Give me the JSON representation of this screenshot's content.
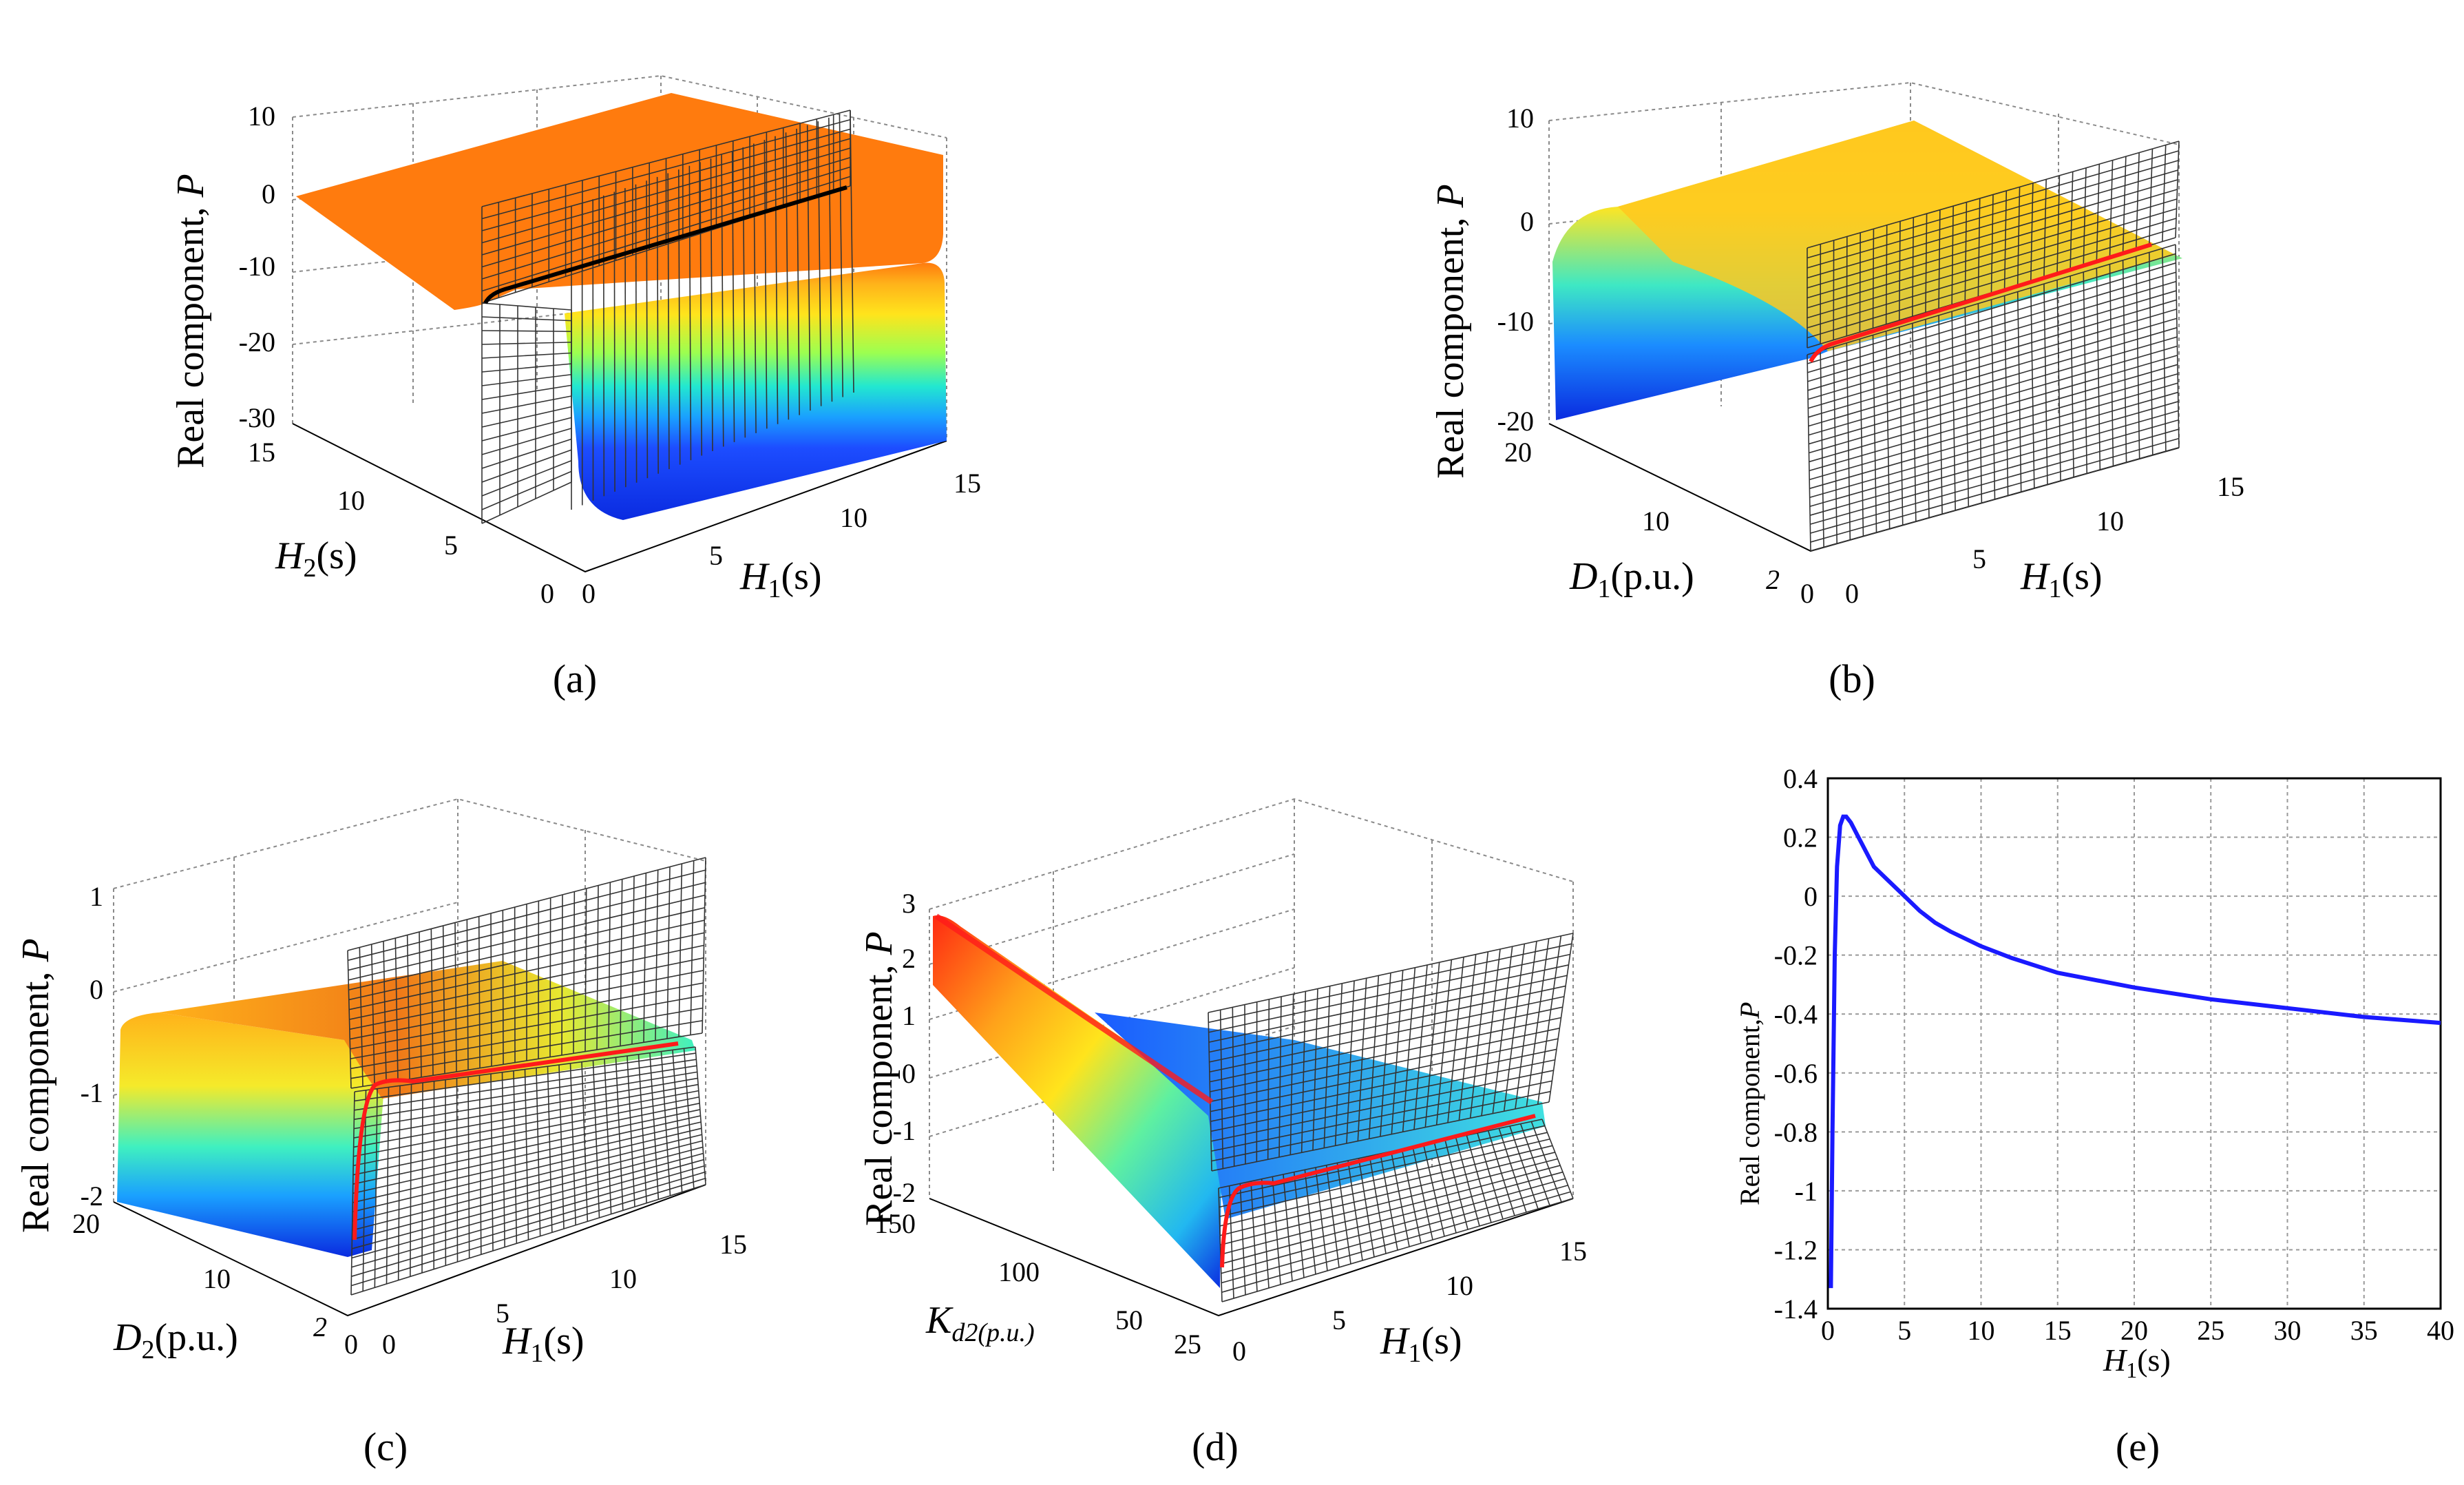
{
  "chart_data": [
    {
      "id": "a",
      "type": "surface",
      "caption": "(a)",
      "zlabel": {
        "prefix": "Real component, ",
        "var": "P"
      },
      "ylabel": {
        "var": "H",
        "sub": "2",
        "unit": "(s)"
      },
      "xlabel": {
        "var": "H",
        "sub": "1",
        "unit": "(s)"
      },
      "z_ticks": [
        "10",
        "0",
        "-10",
        "-20",
        "-30"
      ],
      "y_ticks": [
        "15",
        "10",
        "5",
        "0"
      ],
      "x_ticks": [
        "0",
        "5",
        "10",
        "15"
      ],
      "zlim": [
        -30,
        10
      ],
      "xlim": [
        0,
        15
      ],
      "ylim": [
        0,
        15
      ],
      "curve_color": "#000000",
      "surface_colors": [
        "#ff7b0e",
        "#ffe41c",
        "#22e8d0",
        "#1d4dff",
        "#0a2be0"
      ]
    },
    {
      "id": "b",
      "type": "surface",
      "caption": "(b)",
      "zlabel": {
        "prefix": "Real component, ",
        "var": "P"
      },
      "ylabel": {
        "var": "D",
        "sub": "1",
        "unit": "(p.u.)"
      },
      "xlabel": {
        "var": "H",
        "sub": "1",
        "unit": "(s)"
      },
      "z_ticks": [
        "10",
        "0",
        "-10",
        "-20"
      ],
      "y_ticks": [
        "20",
        "10",
        "2",
        "0"
      ],
      "x_ticks": [
        "0",
        "5",
        "10",
        "15"
      ],
      "zlim": [
        -20,
        10
      ],
      "xlim": [
        0,
        15
      ],
      "ylim": [
        2,
        20
      ],
      "curve_color": "#ff1a1a",
      "surface_colors": [
        "#ffc81e",
        "#f6e52a",
        "#3ee8c4",
        "#1b8cff",
        "#0a2be0"
      ]
    },
    {
      "id": "c",
      "type": "surface",
      "caption": "(c)",
      "zlabel": {
        "prefix": "Real component, ",
        "var": "P"
      },
      "ylabel": {
        "var": "D",
        "sub": "2",
        "unit": "(p.u.)"
      },
      "xlabel": {
        "var": "H",
        "sub": "1",
        "unit": "(s)"
      },
      "z_ticks": [
        "1",
        "0",
        "-1",
        "-2"
      ],
      "y_ticks": [
        "20",
        "10",
        "2",
        "0"
      ],
      "x_ticks": [
        "0",
        "5",
        "10",
        "15"
      ],
      "zlim": [
        -2,
        1
      ],
      "xlim": [
        0,
        15
      ],
      "ylim": [
        2,
        20
      ],
      "curve_color": "#ff1a1a",
      "surface_colors": [
        "#ffb21a",
        "#f5ea2a",
        "#3ff0c0",
        "#1aa0ff",
        "#0a2be0"
      ]
    },
    {
      "id": "d",
      "type": "surface",
      "caption": "(d)",
      "zlabel": {
        "prefix": "Real component, ",
        "var": "P"
      },
      "ylabel": {
        "var": "K",
        "sub": "d2(p.u.)",
        "unit": ""
      },
      "xlabel": {
        "var": "H",
        "sub": "1",
        "unit": "(s)"
      },
      "z_ticks": [
        "3",
        "2",
        "1",
        "0",
        "-1",
        "-2"
      ],
      "y_ticks": [
        "150",
        "100",
        "50",
        "25"
      ],
      "x_ticks": [
        "0",
        "5",
        "10",
        "15"
      ],
      "zlim": [
        -2,
        3
      ],
      "xlim": [
        0,
        15
      ],
      "ylim": [
        25,
        150
      ],
      "curve_color": "#ff1a1a",
      "surface_colors": [
        "#ff2a12",
        "#ffd21c",
        "#5ff0a0",
        "#22b8f0",
        "#0a2be0"
      ]
    },
    {
      "id": "e",
      "type": "line",
      "caption": "(e)",
      "ylabel": {
        "prefix": "Real component,",
        "var": "P"
      },
      "xlabel": {
        "var": "H",
        "sub": "1",
        "unit": "(s)"
      },
      "xlim": [
        0,
        40
      ],
      "ylim": [
        -1.4,
        0.4
      ],
      "x_ticks": [
        "0",
        "5",
        "10",
        "15",
        "20",
        "25",
        "30",
        "35",
        "40"
      ],
      "y_ticks": [
        "0.4",
        "0.2",
        "0",
        "-0.2",
        "-0.4",
        "-0.6",
        "-0.8",
        "-1",
        "-1.2",
        "-1.4"
      ],
      "grid": true,
      "series": [
        {
          "color": "#1a1aff",
          "x": [
            0.2,
            0.3,
            0.45,
            0.6,
            0.8,
            1.0,
            1.2,
            1.5,
            2,
            2.5,
            3,
            4,
            5,
            6,
            7,
            8,
            10,
            12,
            15,
            20,
            25,
            30,
            35,
            40
          ],
          "y": [
            -1.33,
            -0.8,
            -0.2,
            0.1,
            0.24,
            0.27,
            0.27,
            0.25,
            0.2,
            0.15,
            0.1,
            0.05,
            0.0,
            -0.05,
            -0.09,
            -0.12,
            -0.17,
            -0.21,
            -0.26,
            -0.31,
            -0.35,
            -0.38,
            -0.41,
            -0.43
          ]
        }
      ]
    }
  ]
}
